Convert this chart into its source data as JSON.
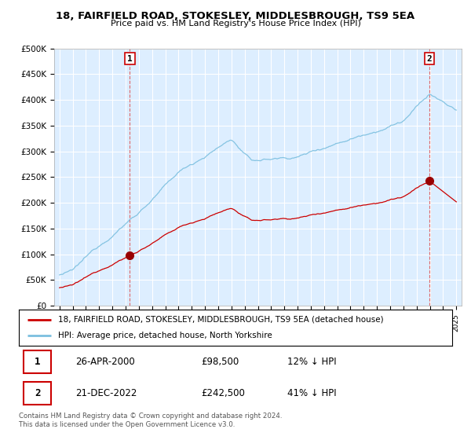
{
  "title": "18, FAIRFIELD ROAD, STOKESLEY, MIDDLESBROUGH, TS9 5EA",
  "subtitle": "Price paid vs. HM Land Registry's House Price Index (HPI)",
  "ylabel_ticks": [
    "£0",
    "£50K",
    "£100K",
    "£150K",
    "£200K",
    "£250K",
    "£300K",
    "£350K",
    "£400K",
    "£450K",
    "£500K"
  ],
  "ytick_values": [
    0,
    50000,
    100000,
    150000,
    200000,
    250000,
    300000,
    350000,
    400000,
    450000,
    500000
  ],
  "ylim": [
    0,
    500000
  ],
  "hpi_color": "#7bbfdf",
  "price_color": "#cc0000",
  "marker_color": "#990000",
  "bg_shading": "#ddeeff",
  "sale1_year": 2000.32,
  "sale1_price": 98500,
  "sale2_year": 2022.97,
  "sale2_price": 242500,
  "legend_line1": "18, FAIRFIELD ROAD, STOKESLEY, MIDDLESBROUGH, TS9 5EA (detached house)",
  "legend_line2": "HPI: Average price, detached house, North Yorkshire",
  "annotation1_date": "26-APR-2000",
  "annotation1_price": "£98,500",
  "annotation1_hpi": "12% ↓ HPI",
  "annotation2_date": "21-DEC-2022",
  "annotation2_price": "£242,500",
  "annotation2_hpi": "41% ↓ HPI",
  "footer": "Contains HM Land Registry data © Crown copyright and database right 2024.\nThis data is licensed under the Open Government Licence v3.0.",
  "background_color": "#ffffff",
  "grid_color": "#cccccc"
}
